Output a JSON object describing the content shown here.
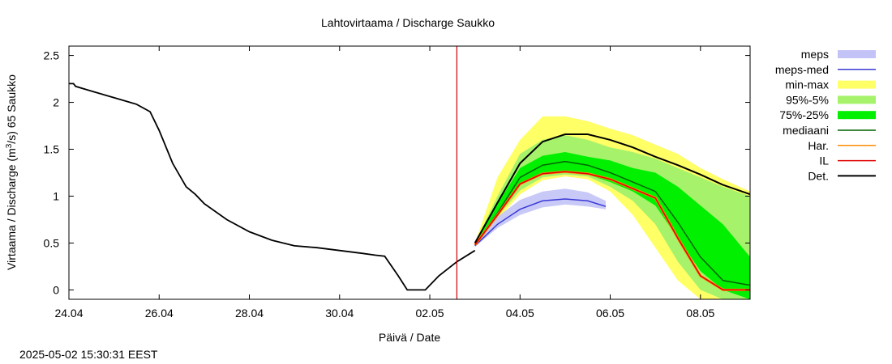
{
  "timestamp": "2025-05-02 15:30:31 EEST",
  "chart_data": {
    "type": "line",
    "title": "Lahtovirtaama / Discharge  Saukko",
    "xlabel": "Päivä / Date",
    "ylabel_parts": [
      "Virtaama / Discharge (m",
      "3",
      "/s)  65 Saukko"
    ],
    "x_unit": "days since 24.04",
    "xlim": [
      0,
      15.1
    ],
    "ylim": [
      -0.1,
      2.6
    ],
    "x_ticks": [
      {
        "x": 0,
        "label": "24.04"
      },
      {
        "x": 2,
        "label": "26.04"
      },
      {
        "x": 4,
        "label": "28.04"
      },
      {
        "x": 6,
        "label": "30.04"
      },
      {
        "x": 8,
        "label": "02.05"
      },
      {
        "x": 10,
        "label": "04.05"
      },
      {
        "x": 12,
        "label": "06.05"
      },
      {
        "x": 14,
        "label": "08.05"
      }
    ],
    "y_ticks": [
      {
        "y": 0,
        "label": "0"
      },
      {
        "y": 0.5,
        "label": "0.5"
      },
      {
        "y": 1,
        "label": "1"
      },
      {
        "y": 1.5,
        "label": "1.5"
      },
      {
        "y": 2,
        "label": "2"
      },
      {
        "y": 2.5,
        "label": "2.5"
      }
    ],
    "forecast_start_x": 8.6,
    "colors": {
      "meps": "#c3c3f7",
      "meps_med": "#3a3ad6",
      "minmax": "#ffff66",
      "p95_5": "#a6f26b",
      "p75_25": "#00f000",
      "median": "#006400",
      "har": "#ff8c00",
      "il": "#e00000",
      "det": "#000000",
      "now_line": "#cc0000"
    },
    "legend": [
      {
        "key": "meps",
        "label": "meps",
        "style": "band"
      },
      {
        "key": "meps_med",
        "label": "meps-med",
        "style": "line"
      },
      {
        "key": "minmax",
        "label": "min-max",
        "style": "band"
      },
      {
        "key": "p95_5",
        "label": "95%-5%",
        "style": "band"
      },
      {
        "key": "p75_25",
        "label": "75%-25%",
        "style": "band"
      },
      {
        "key": "median",
        "label": "mediaani",
        "style": "line"
      },
      {
        "key": "har",
        "label": "Har.",
        "style": "line"
      },
      {
        "key": "il",
        "label": "IL",
        "style": "line"
      },
      {
        "key": "det",
        "label": "Det.",
        "style": "line"
      }
    ],
    "observed": {
      "x": [
        0,
        0.1,
        0.15,
        0.5,
        1.0,
        1.5,
        1.8,
        2.0,
        2.3,
        2.6,
        2.8,
        3.0,
        3.5,
        4.0,
        4.5,
        5.0,
        5.5,
        6.0,
        6.5,
        6.8,
        7.0,
        7.3,
        7.5,
        7.9,
        8.2,
        8.6,
        9.0
      ],
      "y": [
        2.2,
        2.2,
        2.17,
        2.12,
        2.05,
        1.98,
        1.9,
        1.7,
        1.35,
        1.1,
        1.02,
        0.92,
        0.75,
        0.62,
        0.53,
        0.47,
        0.45,
        0.42,
        0.39,
        0.37,
        0.36,
        0.15,
        0.0,
        0.0,
        0.15,
        0.3,
        0.42
      ]
    },
    "forecast": {
      "x": [
        9.0,
        9.5,
        10.0,
        10.5,
        11.0,
        11.5,
        12.0,
        12.5,
        13.0,
        13.5,
        14.0,
        14.5,
        15.1
      ],
      "minmax_lower": [
        0.48,
        0.75,
        1.02,
        1.17,
        1.21,
        1.18,
        1.05,
        0.8,
        0.45,
        0.1,
        -0.1,
        -0.1,
        -0.1
      ],
      "minmax_upper": [
        0.5,
        1.2,
        1.6,
        1.85,
        1.85,
        1.8,
        1.72,
        1.65,
        1.55,
        1.45,
        1.3,
        1.18,
        1.05
      ],
      "p95_5_lower": [
        0.48,
        0.78,
        1.06,
        1.2,
        1.23,
        1.21,
        1.1,
        0.95,
        0.7,
        0.3,
        0.0,
        -0.1,
        -0.1
      ],
      "p95_5_upper": [
        0.5,
        1.0,
        1.45,
        1.6,
        1.65,
        1.6,
        1.52,
        1.47,
        1.4,
        1.3,
        1.2,
        1.1,
        1.0
      ],
      "p75_25_lower": [
        0.48,
        0.8,
        1.12,
        1.24,
        1.25,
        1.23,
        1.15,
        1.05,
        0.9,
        0.55,
        0.2,
        0.0,
        -0.1
      ],
      "p75_25_upper": [
        0.5,
        0.92,
        1.3,
        1.43,
        1.47,
        1.42,
        1.38,
        1.3,
        1.25,
        1.1,
        0.9,
        0.7,
        0.35
      ],
      "median": [
        0.48,
        0.82,
        1.2,
        1.33,
        1.37,
        1.33,
        1.25,
        1.15,
        1.05,
        0.72,
        0.35,
        0.1,
        0.05
      ],
      "il": [
        0.48,
        0.8,
        1.13,
        1.24,
        1.26,
        1.24,
        1.18,
        1.08,
        0.98,
        0.55,
        0.15,
        0.0,
        0.0
      ],
      "det": [
        0.5,
        0.93,
        1.35,
        1.58,
        1.66,
        1.66,
        1.6,
        1.52,
        1.42,
        1.33,
        1.23,
        1.12,
        1.02
      ]
    },
    "meps_forecast": {
      "x": [
        9.0,
        9.5,
        10.0,
        10.5,
        11.0,
        11.5,
        11.9
      ],
      "lower": [
        0.46,
        0.66,
        0.8,
        0.88,
        0.91,
        0.89,
        0.86
      ],
      "upper": [
        0.5,
        0.78,
        0.96,
        1.05,
        1.08,
        1.04,
        0.95
      ],
      "median": [
        0.47,
        0.7,
        0.86,
        0.95,
        0.97,
        0.95,
        0.89
      ]
    }
  }
}
